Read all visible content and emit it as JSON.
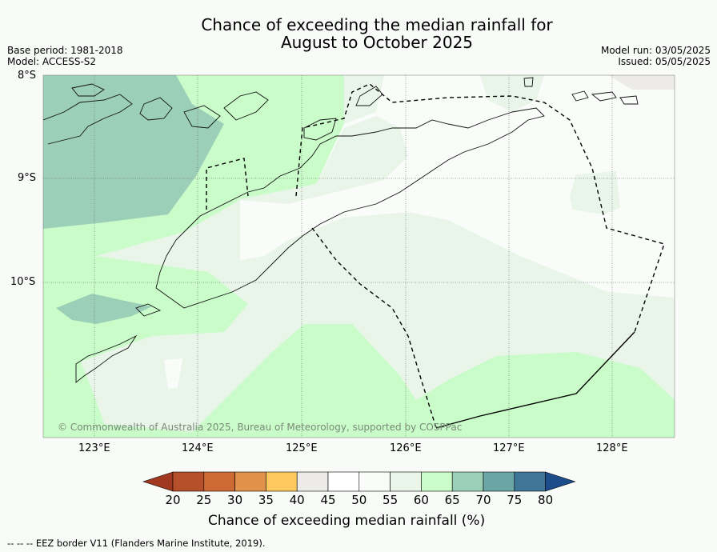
{
  "title_line1": "Chance of exceeding the median rainfall for",
  "title_line2": "August to October 2025",
  "base_period": "Base period: 1981-2018",
  "model": "Model: ACCESS-S2",
  "model_run": "Model run: 03/05/2025",
  "issued": "Issued: 05/05/2025",
  "lat_labels": [
    "8°S",
    "9°S",
    "10°S"
  ],
  "lon_labels": [
    "123°E",
    "124°E",
    "125°E",
    "126°E",
    "127°E",
    "128°E"
  ],
  "copyright": "© Commonwealth of Australia 2025, Bureau of Meteorology, supported by COSPPac",
  "colorbar": {
    "title": "Chance of exceeding median rainfall (%)",
    "ticks": [
      "20",
      "25",
      "30",
      "35",
      "40",
      "45",
      "50",
      "55",
      "60",
      "65",
      "70",
      "75",
      "80"
    ],
    "colors": [
      "#a0391f",
      "#b5502b",
      "#cd6a34",
      "#e0924a",
      "#fdc95e",
      "#ecebe8",
      "#ffffff",
      "#fafcfa",
      "#eaf5ea",
      "#c9fcc8",
      "#9ccfb8",
      "#6aa6a6",
      "#3f7697",
      "#1c4c8a"
    ]
  },
  "footnote": "-- -- -- EEZ border V11 (Flanders Marine Institute, 2019)."
}
